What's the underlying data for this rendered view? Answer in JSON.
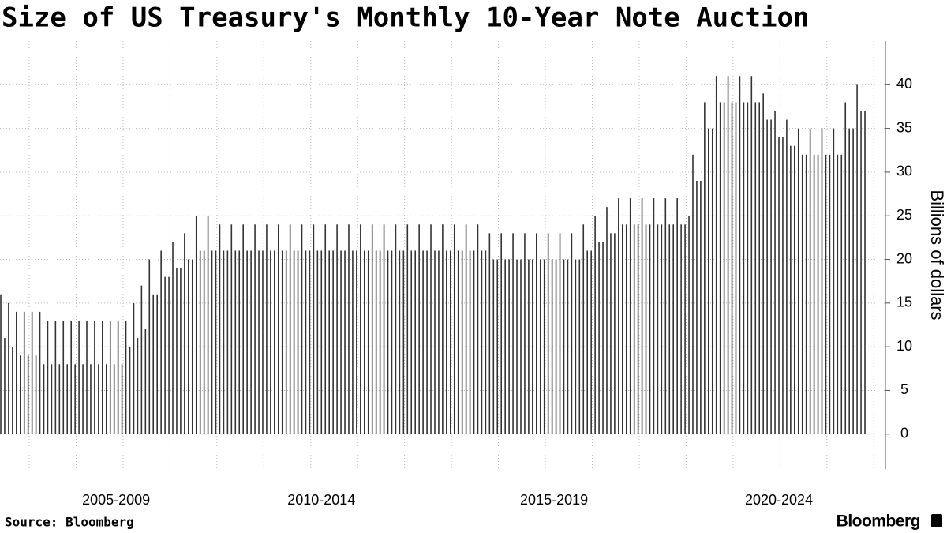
{
  "chart_data": {
    "type": "bar",
    "title": "Size of US Treasury's Monthly 10-Year Note Auction",
    "y_axis_title": "Billions of dollars",
    "source": "Source: Bloomberg",
    "logo": "Bloomberg",
    "color": "#333333",
    "grid": true,
    "values": [
      16,
      11,
      15,
      10,
      14,
      9,
      14,
      9,
      14,
      9,
      14,
      8,
      13,
      8,
      13,
      8,
      13,
      8,
      13,
      8,
      13,
      8,
      13,
      8,
      13,
      8,
      13,
      8,
      13,
      8,
      13,
      8,
      13,
      10,
      15,
      11,
      17,
      12,
      20,
      16,
      16,
      21,
      18,
      18,
      22,
      19,
      19,
      23,
      20,
      20,
      25,
      21,
      21,
      25,
      21,
      21,
      24,
      21,
      21,
      24,
      21,
      21,
      24,
      21,
      21,
      24,
      21,
      21,
      24,
      21,
      21,
      24,
      21,
      21,
      24,
      21,
      21,
      24,
      21,
      21,
      24,
      21,
      21,
      24,
      21,
      21,
      24,
      21,
      21,
      24,
      21,
      21,
      24,
      21,
      21,
      24,
      21,
      21,
      24,
      21,
      21,
      24,
      21,
      21,
      24,
      21,
      21,
      24,
      21,
      21,
      24,
      21,
      21,
      24,
      21,
      21,
      24,
      21,
      21,
      24,
      21,
      21,
      24,
      21,
      21,
      23,
      20,
      20,
      23,
      20,
      20,
      23,
      20,
      20,
      23,
      20,
      20,
      23,
      20,
      20,
      23,
      20,
      20,
      23,
      20,
      20,
      23,
      20,
      20,
      24,
      21,
      21,
      25,
      22,
      22,
      26,
      23,
      23,
      27,
      24,
      24,
      27,
      24,
      24,
      27,
      24,
      24,
      27,
      24,
      24,
      27,
      24,
      24,
      27,
      24,
      24,
      25,
      32,
      29,
      29,
      38,
      35,
      35,
      41,
      38,
      38,
      41,
      38,
      38,
      41,
      38,
      38,
      41,
      38,
      38,
      39,
      36,
      36,
      37,
      34,
      34,
      36,
      33,
      33,
      35,
      32,
      32,
      35,
      32,
      32,
      35,
      32,
      32,
      35,
      32,
      32,
      38,
      35,
      35,
      40,
      37,
      37
    ],
    "xlim": [
      0,
      221
    ],
    "xticks": [
      {
        "value": 29.5,
        "label": "2005-2009"
      },
      {
        "value": 82,
        "label": "2010-2014"
      },
      {
        "value": 141.5,
        "label": "2015-2019"
      },
      {
        "value": 199,
        "label": "2020-2024"
      }
    ],
    "ylim": [
      -4,
      45
    ],
    "yticks": [
      0,
      5,
      10,
      15,
      20,
      25,
      30,
      35,
      40
    ]
  }
}
